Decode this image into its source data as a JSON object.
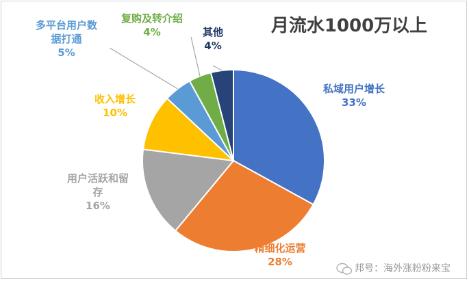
{
  "chart_data": {
    "type": "pie",
    "title": "月流水1000万以上",
    "slices": [
      {
        "label_lines": [
          "私域用户增长"
        ],
        "pct_label": "33%",
        "value": 33,
        "color": "#4472C4"
      },
      {
        "label_lines": [
          "精细化运营"
        ],
        "pct_label": "28%",
        "value": 28,
        "color": "#ED7D31"
      },
      {
        "label_lines": [
          "用户活跃和留",
          "存"
        ],
        "pct_label": "16%",
        "value": 16,
        "color": "#A5A5A5"
      },
      {
        "label_lines": [
          "收入增长"
        ],
        "pct_label": "10%",
        "value": 10,
        "color": "#FFC000"
      },
      {
        "label_lines": [
          "多平台用户数",
          "据打通"
        ],
        "pct_label": "5%",
        "value": 5,
        "color": "#5B9BD5"
      },
      {
        "label_lines": [
          "复购及转介绍"
        ],
        "pct_label": "4%",
        "value": 4,
        "color": "#70AD47"
      },
      {
        "label_lines": [
          "其他"
        ],
        "pct_label": "4%",
        "value": 4,
        "color": "#264478"
      }
    ],
    "label_colors": [
      "#4472C4",
      "#ED7D31",
      "#A5A5A5",
      "#FFC000",
      "#5B9BD5",
      "#70AD47",
      "#203864"
    ]
  },
  "watermark": {
    "text": "邦号：海外涨粉粉来宝"
  }
}
